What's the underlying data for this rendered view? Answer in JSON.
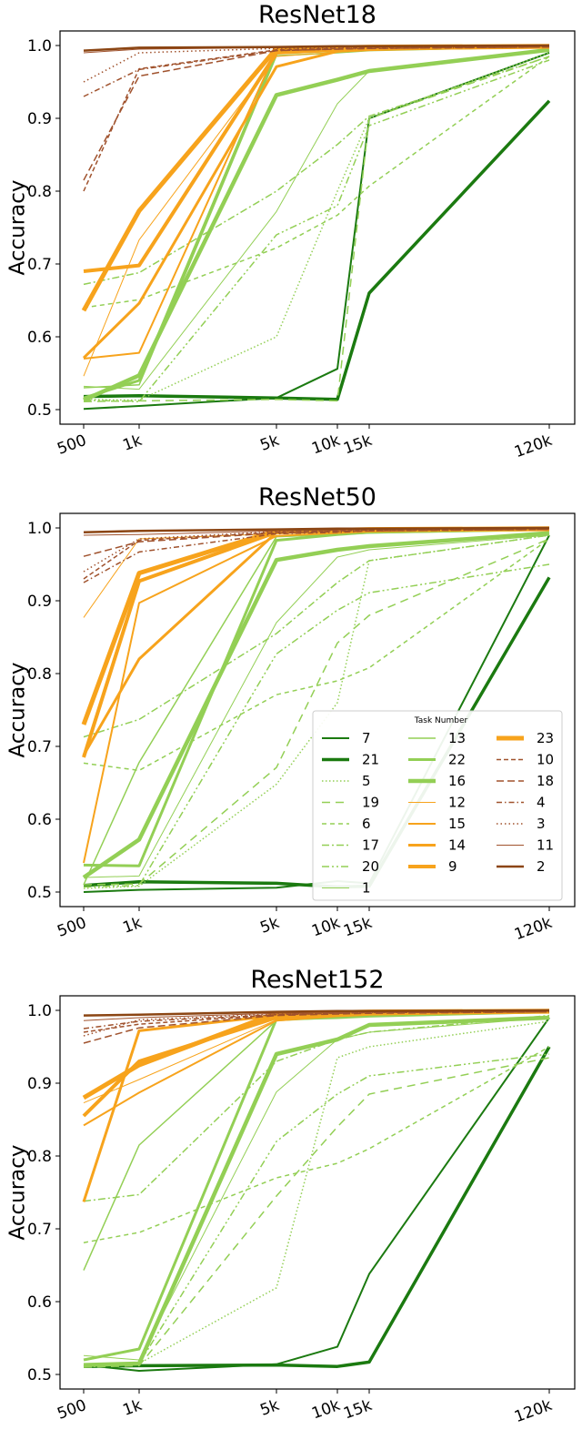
{
  "legend_title": "Task Number",
  "styles": {
    "7": {
      "color": "#1b7a10",
      "w": 2.0,
      "dash": ""
    },
    "21": {
      "color": "#1b7a10",
      "w": 3.5,
      "dash": ""
    },
    "5": {
      "color": "#93cf55",
      "w": 1.5,
      "dash": "1.5,2.5"
    },
    "19": {
      "color": "#93cf55",
      "w": 1.5,
      "dash": "9,6"
    },
    "6": {
      "color": "#93cf55",
      "w": 1.5,
      "dash": "5,4"
    },
    "17": {
      "color": "#93cf55",
      "w": 1.5,
      "dash": "8,3,2,3"
    },
    "20": {
      "color": "#93cf55",
      "w": 1.5,
      "dash": "8,3,2,3,2,3"
    },
    "1": {
      "color": "#93cf55",
      "w": 1.0,
      "dash": ""
    },
    "13": {
      "color": "#93cf55",
      "w": 1.5,
      "dash": ""
    },
    "22": {
      "color": "#93cf55",
      "w": 3.0,
      "dash": ""
    },
    "16": {
      "color": "#93cf55",
      "w": 4.5,
      "dash": ""
    },
    "12": {
      "color": "#f7a31c",
      "w": 1.0,
      "dash": ""
    },
    "15": {
      "color": "#f7a31c",
      "w": 2.0,
      "dash": ""
    },
    "14": {
      "color": "#f7a31c",
      "w": 3.0,
      "dash": ""
    },
    "9": {
      "color": "#f7a31c",
      "w": 4.0,
      "dash": ""
    },
    "23": {
      "color": "#f7a31c",
      "w": 5.0,
      "dash": ""
    },
    "10": {
      "color": "#a0522d",
      "w": 1.5,
      "dash": "5,3"
    },
    "18": {
      "color": "#a0522d",
      "w": 1.5,
      "dash": "8,4"
    },
    "4": {
      "color": "#a0522d",
      "w": 1.5,
      "dash": "6,3,1.5,3"
    },
    "3": {
      "color": "#a0522d",
      "w": 1.5,
      "dash": "1.5,3"
    },
    "11": {
      "color": "#a0522d",
      "w": 1.0,
      "dash": ""
    },
    "2": {
      "color": "#8b4513",
      "w": 2.5,
      "dash": ""
    }
  },
  "legend_columns": [
    [
      "7",
      "21",
      "5",
      "19",
      "6",
      "17",
      "20",
      "1"
    ],
    [
      "13",
      "22",
      "16",
      "12",
      "15",
      "14",
      "9"
    ],
    [
      "23",
      "10",
      "18",
      "4",
      "3",
      "11",
      "2"
    ]
  ],
  "chart_data": [
    {
      "type": "line",
      "title": "ResNet18",
      "xlabel": "",
      "ylabel": "Accuracy",
      "x": [
        500,
        1000,
        5000,
        10000,
        15000,
        120000
      ],
      "x_tick_labels": [
        "500",
        "1k",
        "5k",
        "10k",
        "15k",
        "120k"
      ],
      "ylim": [
        0.48,
        1.02
      ],
      "y_ticks": [
        0.5,
        0.6,
        0.7,
        0.8,
        0.9,
        1.0
      ],
      "y_tick_labels": [
        "0.5",
        "0.6",
        "0.7",
        "0.8",
        "0.9",
        "1.0"
      ],
      "legend": false,
      "series": [
        {
          "name": "7",
          "values": [
            0.501,
            0.505,
            0.516,
            0.556,
            0.9,
            0.99
          ]
        },
        {
          "name": "21",
          "values": [
            0.518,
            0.519,
            0.516,
            0.514,
            0.66,
            0.924
          ]
        },
        {
          "name": "5",
          "values": [
            0.514,
            0.513,
            0.6,
            0.8,
            0.9,
            0.99
          ]
        },
        {
          "name": "19",
          "values": [
            0.511,
            0.512,
            0.514,
            0.512,
            0.9,
            0.985
          ]
        },
        {
          "name": "6",
          "values": [
            0.64,
            0.651,
            0.722,
            0.767,
            0.807,
            0.985
          ]
        },
        {
          "name": "17",
          "values": [
            0.672,
            0.688,
            0.8,
            0.864,
            0.903,
            0.985
          ]
        },
        {
          "name": "20",
          "values": [
            0.513,
            0.511,
            0.74,
            0.78,
            0.89,
            0.98
          ]
        },
        {
          "name": "1",
          "values": [
            0.532,
            0.528,
            0.772,
            0.92,
            0.965,
            0.994
          ]
        },
        {
          "name": "13",
          "values": [
            0.53,
            0.534,
            0.986,
            0.99,
            0.993,
            0.998
          ]
        },
        {
          "name": "22",
          "values": [
            0.516,
            0.54,
            0.99,
            0.993,
            0.995,
            0.998
          ]
        },
        {
          "name": "16",
          "values": [
            0.513,
            0.547,
            0.932,
            0.953,
            0.965,
            0.994
          ]
        },
        {
          "name": "12",
          "values": [
            0.546,
            0.733,
            0.985,
            0.991,
            0.993,
            0.998
          ]
        },
        {
          "name": "15",
          "values": [
            0.57,
            0.578,
            0.993,
            0.995,
            0.996,
            0.998
          ]
        },
        {
          "name": "14",
          "values": [
            0.571,
            0.646,
            0.971,
            0.992,
            0.995,
            0.998
          ]
        },
        {
          "name": "9",
          "values": [
            0.69,
            0.698,
            0.99,
            0.994,
            0.996,
            0.998
          ]
        },
        {
          "name": "23",
          "values": [
            0.636,
            0.773,
            0.996,
            0.997,
            0.998,
            0.999
          ]
        },
        {
          "name": "10",
          "values": [
            0.8,
            0.968,
            0.994,
            0.996,
            0.997,
            0.998
          ]
        },
        {
          "name": "18",
          "values": [
            0.815,
            0.958,
            0.993,
            0.995,
            0.996,
            0.998
          ]
        },
        {
          "name": "4",
          "values": [
            0.93,
            0.967,
            0.993,
            0.995,
            0.996,
            0.998
          ]
        },
        {
          "name": "3",
          "values": [
            0.95,
            0.99,
            0.996,
            0.997,
            0.998,
            0.999
          ]
        },
        {
          "name": "11",
          "values": [
            0.99,
            0.995,
            0.997,
            0.998,
            0.998,
            0.999
          ]
        },
        {
          "name": "2",
          "values": [
            0.993,
            0.997,
            0.998,
            0.999,
            0.999,
            1.0
          ]
        }
      ]
    },
    {
      "type": "line",
      "title": "ResNet50",
      "xlabel": "",
      "ylabel": "Accuracy",
      "x": [
        500,
        1000,
        5000,
        10000,
        15000,
        120000
      ],
      "x_tick_labels": [
        "500",
        "1k",
        "5k",
        "10k",
        "15k",
        "120k"
      ],
      "ylim": [
        0.48,
        1.02
      ],
      "y_ticks": [
        0.5,
        0.6,
        0.7,
        0.8,
        0.9,
        1.0
      ],
      "y_tick_labels": [
        "0.5",
        "0.6",
        "0.7",
        "0.8",
        "0.9",
        "1.0"
      ],
      "legend": true,
      "legend_position": "lower-right",
      "series": [
        {
          "name": "7",
          "values": [
            0.5,
            0.503,
            0.506,
            0.515,
            0.512,
            0.99
          ]
        },
        {
          "name": "21",
          "values": [
            0.509,
            0.514,
            0.512,
            0.507,
            0.508,
            0.932
          ]
        },
        {
          "name": "5",
          "values": [
            0.505,
            0.508,
            0.648,
            0.76,
            0.955,
            0.99
          ]
        },
        {
          "name": "19",
          "values": [
            0.51,
            0.511,
            0.671,
            0.842,
            0.88,
            0.985
          ]
        },
        {
          "name": "6",
          "values": [
            0.677,
            0.667,
            0.771,
            0.79,
            0.808,
            0.985
          ]
        },
        {
          "name": "17",
          "values": [
            0.713,
            0.737,
            0.855,
            0.925,
            0.955,
            0.99
          ]
        },
        {
          "name": "20",
          "values": [
            0.507,
            0.509,
            0.827,
            0.887,
            0.911,
            0.95
          ]
        },
        {
          "name": "1",
          "values": [
            0.52,
            0.522,
            0.87,
            0.96,
            0.97,
            0.99
          ]
        },
        {
          "name": "13",
          "values": [
            0.51,
            0.678,
            0.988,
            0.991,
            0.993,
            0.997
          ]
        },
        {
          "name": "22",
          "values": [
            0.537,
            0.536,
            0.983,
            0.991,
            0.994,
            0.998
          ]
        },
        {
          "name": "16",
          "values": [
            0.52,
            0.572,
            0.956,
            0.97,
            0.975,
            0.993
          ]
        },
        {
          "name": "12",
          "values": [
            0.877,
            0.985,
            0.992,
            0.994,
            0.995,
            0.998
          ]
        },
        {
          "name": "15",
          "values": [
            0.54,
            0.897,
            0.989,
            0.993,
            0.995,
            0.998
          ]
        },
        {
          "name": "14",
          "values": [
            0.688,
            0.82,
            0.994,
            0.996,
            0.997,
            0.998
          ]
        },
        {
          "name": "9",
          "values": [
            0.685,
            0.927,
            0.994,
            0.996,
            0.997,
            0.998
          ]
        },
        {
          "name": "23",
          "values": [
            0.73,
            0.938,
            0.996,
            0.997,
            0.998,
            0.999
          ]
        },
        {
          "name": "10",
          "values": [
            0.93,
            0.983,
            0.994,
            0.996,
            0.997,
            0.998
          ]
        },
        {
          "name": "18",
          "values": [
            0.961,
            0.981,
            0.993,
            0.995,
            0.996,
            0.998
          ]
        },
        {
          "name": "4",
          "values": [
            0.925,
            0.967,
            0.992,
            0.994,
            0.996,
            0.998
          ]
        },
        {
          "name": "3",
          "values": [
            0.94,
            0.985,
            0.995,
            0.996,
            0.997,
            0.999
          ]
        },
        {
          "name": "11",
          "values": [
            0.99,
            0.991,
            0.996,
            0.997,
            0.998,
            0.999
          ]
        },
        {
          "name": "2",
          "values": [
            0.994,
            0.996,
            0.998,
            0.999,
            0.999,
            1.0
          ]
        }
      ]
    },
    {
      "type": "line",
      "title": "ResNet152",
      "xlabel": "",
      "ylabel": "Accuracy",
      "x": [
        500,
        1000,
        5000,
        10000,
        15000,
        120000
      ],
      "x_tick_labels": [
        "500",
        "1k",
        "5k",
        "10k",
        "15k",
        "120k"
      ],
      "ylim": [
        0.48,
        1.02
      ],
      "y_ticks": [
        0.5,
        0.6,
        0.7,
        0.8,
        0.9,
        1.0
      ],
      "y_tick_labels": [
        "0.5",
        "0.6",
        "0.7",
        "0.8",
        "0.9",
        "1.0"
      ],
      "legend": false,
      "series": [
        {
          "name": "7",
          "values": [
            0.513,
            0.505,
            0.514,
            0.538,
            0.638,
            0.99
          ]
        },
        {
          "name": "21",
          "values": [
            0.511,
            0.512,
            0.513,
            0.511,
            0.517,
            0.95
          ]
        },
        {
          "name": "5",
          "values": [
            0.514,
            0.515,
            0.619,
            0.935,
            0.95,
            0.985
          ]
        },
        {
          "name": "19",
          "values": [
            0.51,
            0.512,
            0.745,
            0.84,
            0.885,
            0.935
          ]
        },
        {
          "name": "6",
          "values": [
            0.681,
            0.695,
            0.77,
            0.79,
            0.81,
            0.95
          ]
        },
        {
          "name": "17",
          "values": [
            0.738,
            0.747,
            0.93,
            0.96,
            0.97,
            0.993
          ]
        },
        {
          "name": "20",
          "values": [
            0.51,
            0.515,
            0.82,
            0.885,
            0.91,
            0.94
          ]
        },
        {
          "name": "1",
          "values": [
            0.526,
            0.52,
            0.888,
            0.96,
            0.97,
            0.99
          ]
        },
        {
          "name": "13",
          "values": [
            0.643,
            0.815,
            0.986,
            0.99,
            0.992,
            0.997
          ]
        },
        {
          "name": "22",
          "values": [
            0.52,
            0.535,
            0.988,
            0.99,
            0.992,
            0.998
          ]
        },
        {
          "name": "16",
          "values": [
            0.513,
            0.515,
            0.94,
            0.96,
            0.98,
            0.99
          ]
        },
        {
          "name": "12",
          "values": [
            0.873,
            0.905,
            0.987,
            0.992,
            0.994,
            0.998
          ]
        },
        {
          "name": "15",
          "values": [
            0.842,
            0.887,
            0.986,
            0.992,
            0.994,
            0.998
          ]
        },
        {
          "name": "14",
          "values": [
            0.737,
            0.972,
            0.993,
            0.995,
            0.996,
            0.998
          ]
        },
        {
          "name": "9",
          "values": [
            0.855,
            0.93,
            0.99,
            0.994,
            0.996,
            0.998
          ]
        },
        {
          "name": "23",
          "values": [
            0.88,
            0.925,
            0.996,
            0.997,
            0.998,
            0.999
          ]
        },
        {
          "name": "10",
          "values": [
            0.97,
            0.981,
            0.994,
            0.996,
            0.997,
            0.998
          ]
        },
        {
          "name": "18",
          "values": [
            0.955,
            0.976,
            0.993,
            0.995,
            0.996,
            0.998
          ]
        },
        {
          "name": "4",
          "values": [
            0.975,
            0.985,
            0.994,
            0.996,
            0.997,
            0.998
          ]
        },
        {
          "name": "3",
          "values": [
            0.965,
            0.987,
            0.995,
            0.996,
            0.997,
            0.999
          ]
        },
        {
          "name": "11",
          "values": [
            0.986,
            0.99,
            0.996,
            0.997,
            0.998,
            0.999
          ]
        },
        {
          "name": "2",
          "values": [
            0.993,
            0.994,
            0.998,
            0.999,
            0.999,
            1.0
          ]
        }
      ]
    }
  ]
}
